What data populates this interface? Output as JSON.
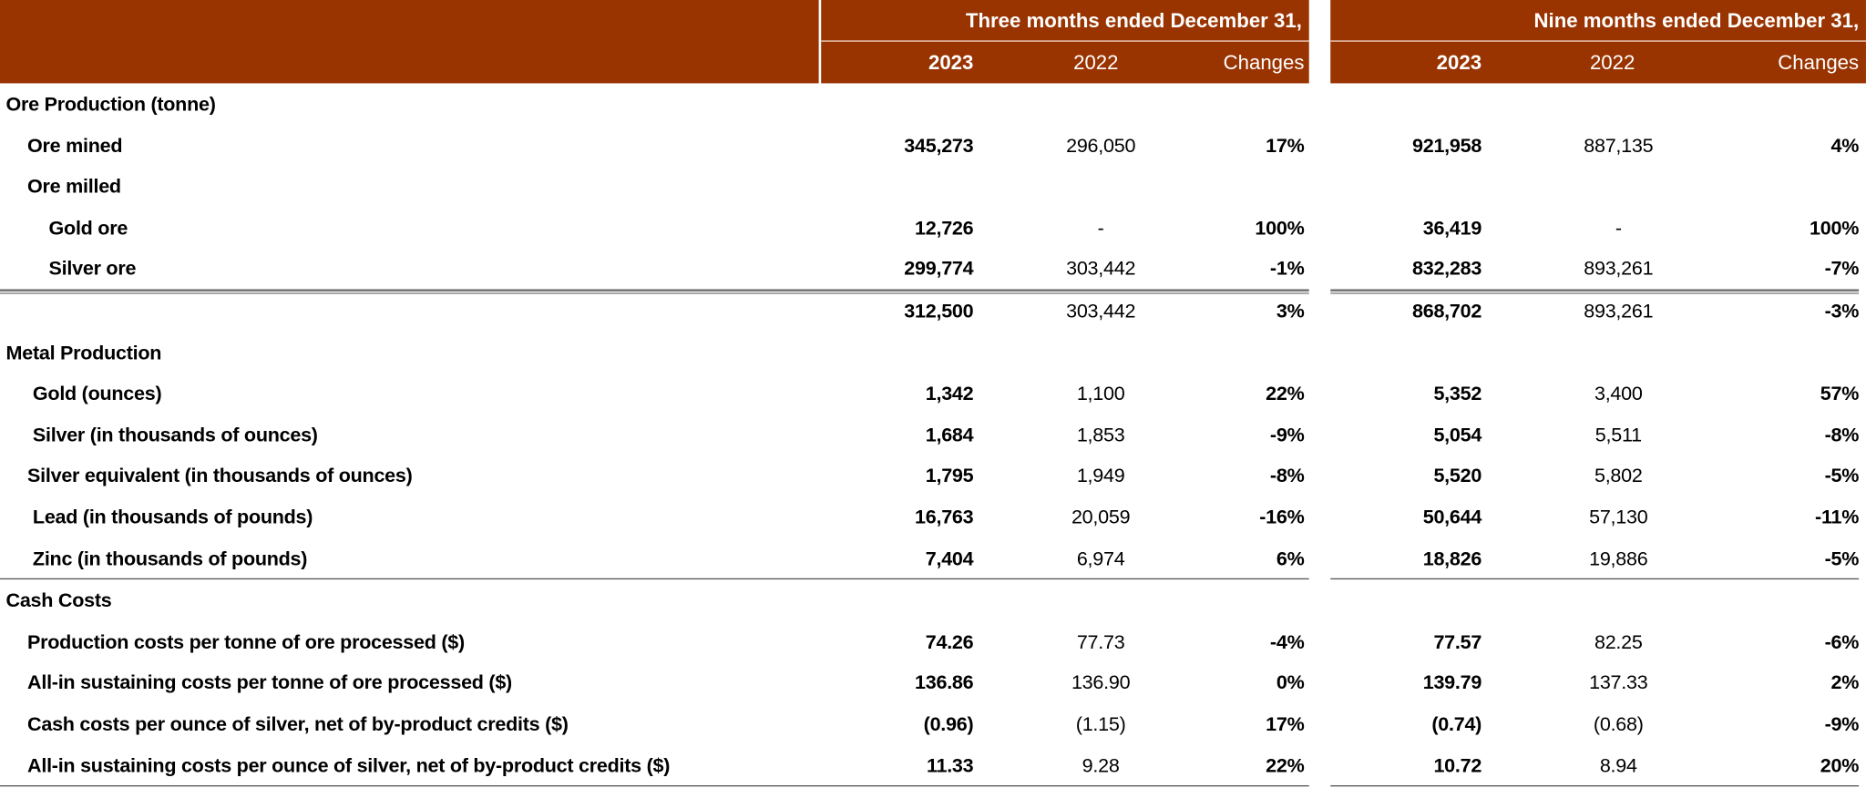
{
  "header": {
    "group_three": "Three months ended December 31,",
    "group_nine": "Nine months ended December 31,",
    "col_2023": "2023",
    "col_2022": "2022",
    "col_changes": "Changes",
    "color": "#993300"
  },
  "rows": [
    {
      "label": "Ore Production (tonne)",
      "indent": 0,
      "section": true
    },
    {
      "label": "Ore mined",
      "indent": 1,
      "v": [
        "345,273",
        "296,050",
        "17%",
        "921,958",
        "887,135",
        "4%"
      ]
    },
    {
      "label": "Ore milled",
      "indent": 1
    },
    {
      "label": "Gold ore",
      "indent": 2,
      "v": [
        "12,726",
        "-",
        "100%",
        "36,419",
        "-",
        "100%"
      ]
    },
    {
      "label": "Silver ore",
      "indent": 2,
      "v": [
        "299,774",
        "303,442",
        "-1%",
        "832,283",
        "893,261",
        "-7%"
      ],
      "rule": "double"
    },
    {
      "label": "",
      "indent": 0,
      "v": [
        "312,500",
        "303,442",
        "3%",
        "868,702",
        "893,261",
        "-3%"
      ]
    },
    {
      "label": "Metal Production",
      "indent": 0,
      "section": true
    },
    {
      "label": "Gold (ounces)",
      "indent": 1.25,
      "v": [
        "1,342",
        "1,100",
        "22%",
        "5,352",
        "3,400",
        "57%"
      ]
    },
    {
      "label": "Silver (in thousands of ounces)",
      "indent": 1.25,
      "v": [
        "1,684",
        "1,853",
        "-9%",
        "5,054",
        "5,511",
        "-8%"
      ]
    },
    {
      "label": "Silver equivalent (in thousands of ounces)",
      "indent": 1,
      "v": [
        "1,795",
        "1,949",
        "-8%",
        "5,520",
        "5,802",
        "-5%"
      ]
    },
    {
      "label": "Lead (in thousands of pounds)",
      "indent": 1.25,
      "v": [
        "16,763",
        "20,059",
        "-16%",
        "50,644",
        "57,130",
        "-11%"
      ]
    },
    {
      "label": "Zinc (in thousands of pounds)",
      "indent": 1.25,
      "v": [
        "7,404",
        "6,974",
        "6%",
        "18,826",
        "19,886",
        "-5%"
      ],
      "rule": "single"
    },
    {
      "label": "Cash Costs",
      "indent": 0,
      "section": true
    },
    {
      "label": "Production costs per tonne of ore processed ($)",
      "indent": 1,
      "v": [
        "74.26",
        "77.73",
        "-4%",
        "77.57",
        "82.25",
        "-6%"
      ]
    },
    {
      "label": "All-in sustaining costs per tonne of ore processed ($)",
      "indent": 1,
      "v": [
        "136.86",
        "136.90",
        "0%",
        "139.79",
        "137.33",
        "2%"
      ]
    },
    {
      "label": "Cash costs per ounce of silver, net of by-product credits ($)",
      "indent": 1,
      "v": [
        "(0.96)",
        "(1.15)",
        "17%",
        "(0.74)",
        "(0.68)",
        "-9%"
      ]
    },
    {
      "label": "All-in sustaining costs per ounce of silver, net of by-product credits ($)",
      "indent": 1,
      "v": [
        "11.33",
        "9.28",
        "22%",
        "10.72",
        "8.94",
        "20%"
      ],
      "rule": "single"
    }
  ]
}
